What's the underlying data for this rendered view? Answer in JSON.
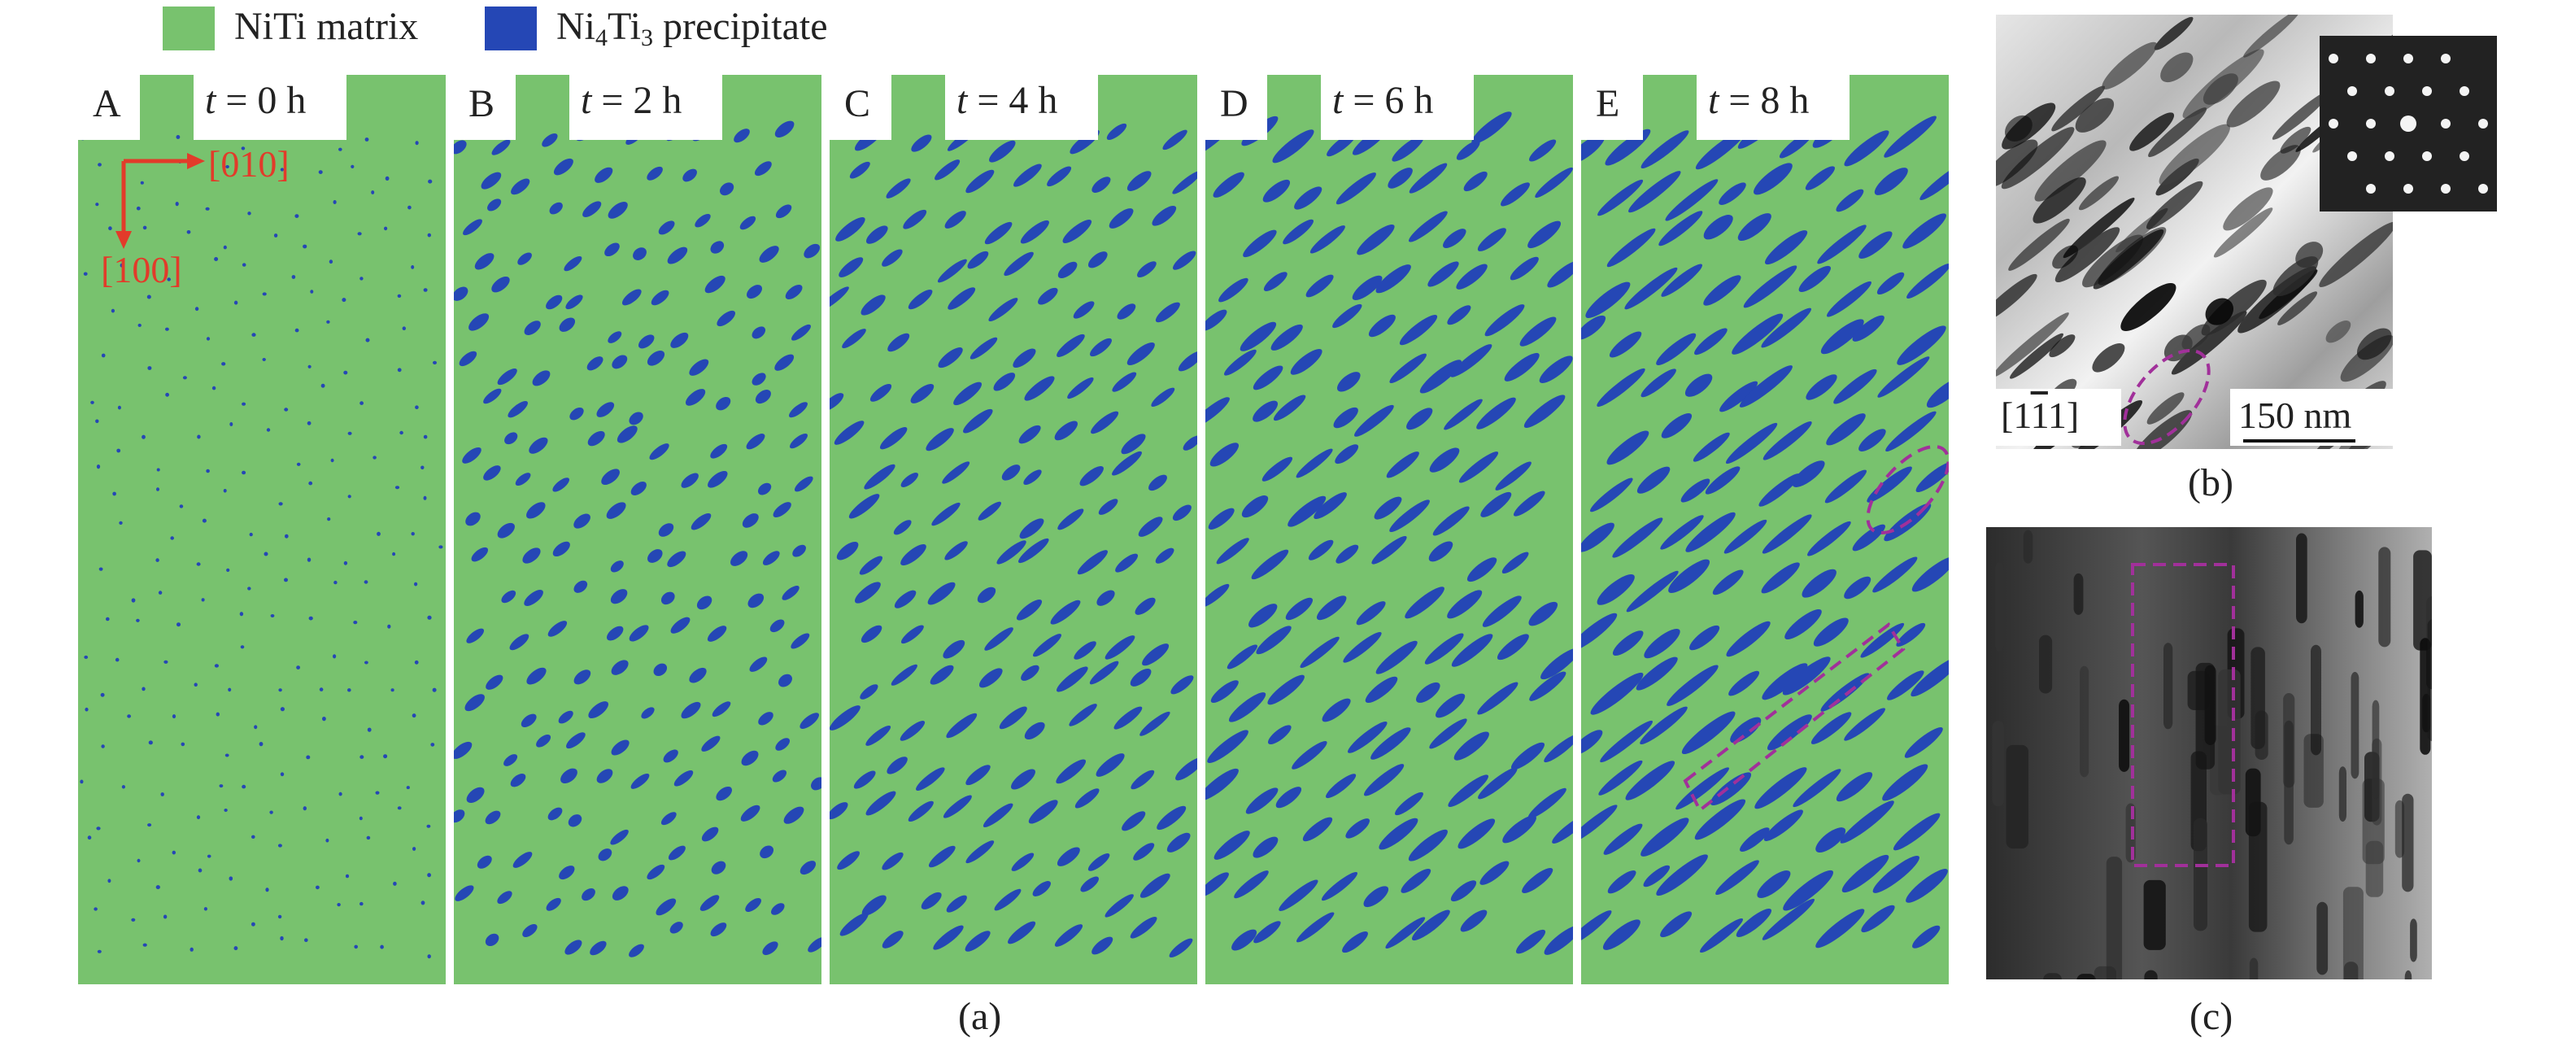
{
  "legend": {
    "matrix_label": "NiTi matrix",
    "precipitate_prefix": "Ni",
    "precipitate_sub1": "4",
    "precipitate_mid": "Ti",
    "precipitate_sub2": "3",
    "precipitate_suffix": " precipitate",
    "matrix_color": "#78c26e",
    "precipitate_color": "#2547b5"
  },
  "panels": [
    {
      "letter": "A",
      "time_var": "t",
      "time_text": " = 0 h"
    },
    {
      "letter": "B",
      "time_var": "t",
      "time_text": " = 2 h"
    },
    {
      "letter": "C",
      "time_var": "t",
      "time_text": " = 4 h"
    },
    {
      "letter": "D",
      "time_var": "t",
      "time_text": " = 6 h"
    },
    {
      "letter": "E",
      "time_var": "t",
      "time_text": " = 8 h"
    }
  ],
  "axes": {
    "x_direction": "[010]",
    "y_direction": "[100]"
  },
  "tem_b": {
    "zone_axis_open": "[1",
    "zone_axis_bar": "1",
    "zone_axis_close": "1]",
    "zone_axis_middle": "1",
    "scale_text": "150 nm"
  },
  "captions": {
    "a": "(a)",
    "b": "(b)",
    "c": "(c)"
  },
  "annotation_color": "#a1309a"
}
